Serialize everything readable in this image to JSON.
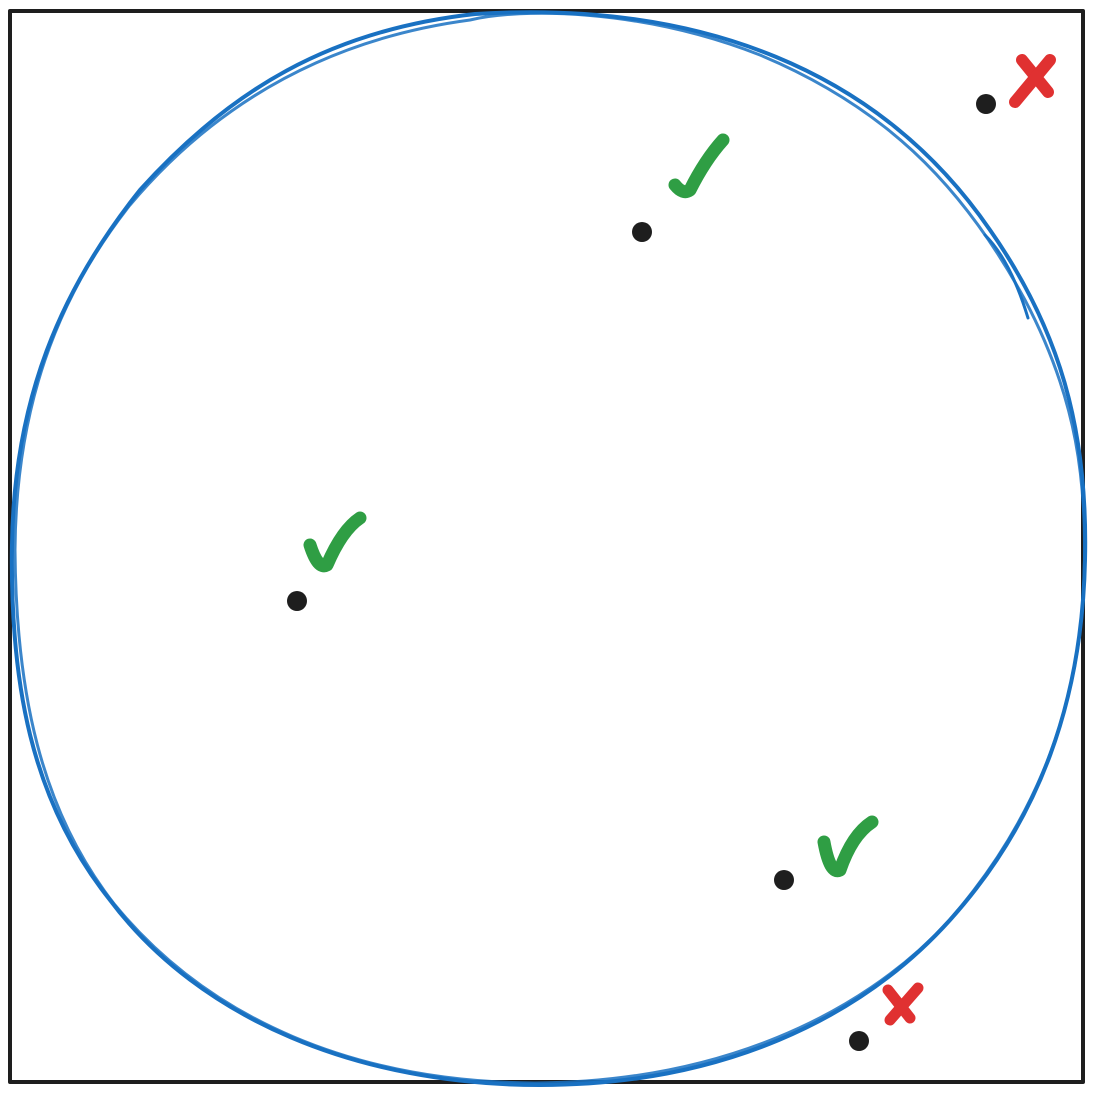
{
  "diagram": {
    "colors": {
      "square": "#1e1e1e",
      "circle": "#1971c2",
      "point": "#1e1e1e",
      "inside_mark": "#2f9e44",
      "outside_mark": "#e03131"
    },
    "points": [
      {
        "id": "p1",
        "status": "outside",
        "mark": "cross-icon"
      },
      {
        "id": "p2",
        "status": "inside",
        "mark": "check-icon"
      },
      {
        "id": "p3",
        "status": "inside",
        "mark": "check-icon"
      },
      {
        "id": "p4",
        "status": "inside",
        "mark": "check-icon"
      },
      {
        "id": "p5",
        "status": "outside",
        "mark": "cross-icon"
      }
    ]
  }
}
